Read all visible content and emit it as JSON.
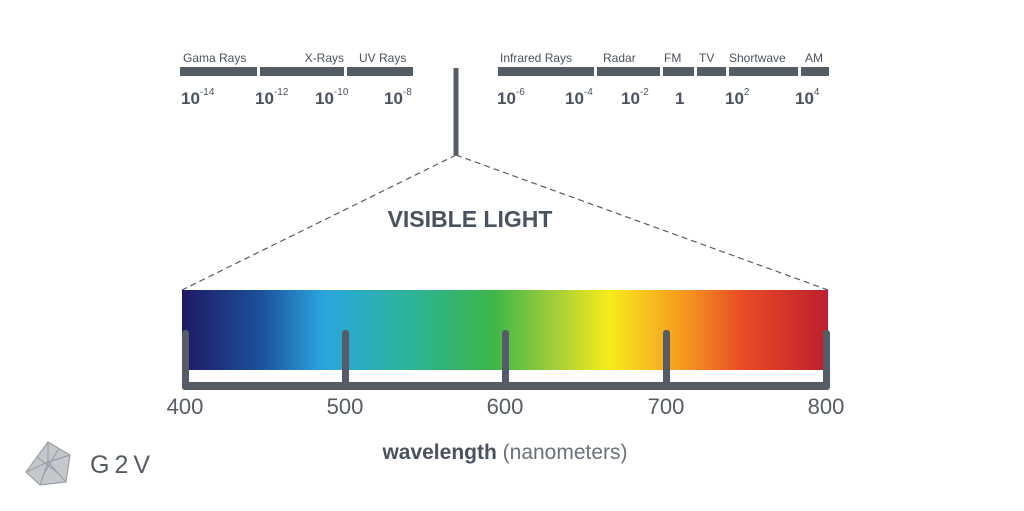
{
  "spectrum": {
    "bands": [
      "Gama Rays",
      "X-Rays",
      "UV Rays",
      "Infrared Rays",
      "Radar",
      "FM",
      "TV",
      "Shortwave",
      "AM"
    ],
    "scale": [
      {
        "base": "10",
        "exp": "-14"
      },
      {
        "base": "10",
        "exp": "-12"
      },
      {
        "base": "10",
        "exp": "-10"
      },
      {
        "base": "10",
        "exp": "-8"
      },
      {
        "base": "10",
        "exp": "-6"
      },
      {
        "base": "10",
        "exp": "-4"
      },
      {
        "base": "10",
        "exp": "-2"
      },
      {
        "base": "1"
      },
      {
        "base": "10",
        "exp": "2"
      },
      {
        "base": "10",
        "exp": "4"
      }
    ]
  },
  "visible": {
    "title": "VISIBLE LIGHT",
    "ticks": [
      400,
      500,
      600,
      700,
      800
    ],
    "axis_label": {
      "main": "wavelength",
      "unit": "(nanometers)"
    }
  },
  "logo": {
    "text": "G2V"
  }
}
